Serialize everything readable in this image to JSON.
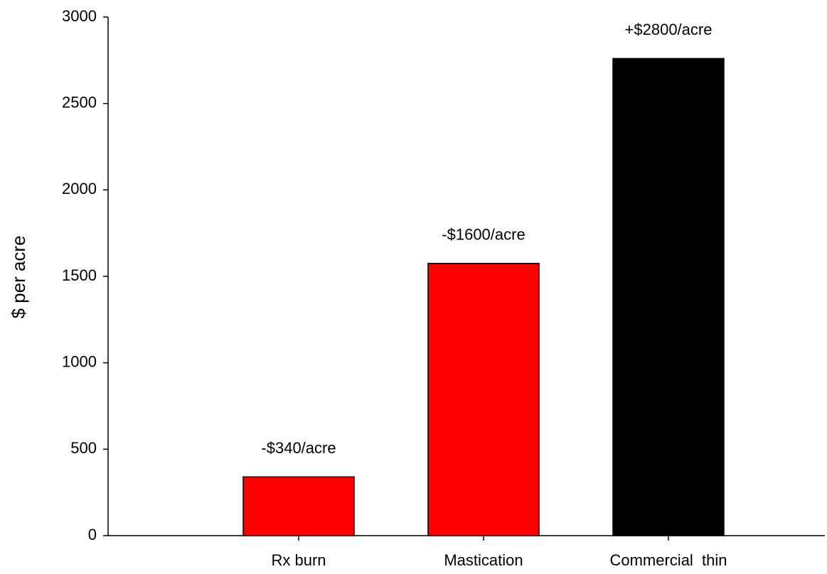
{
  "chart_data": {
    "type": "bar",
    "y_axis_label": "$ per acre",
    "categories": [
      "Rx burn",
      "Mastication",
      "Commercial  thin"
    ],
    "values": [
      340,
      1575,
      2760
    ],
    "colors": [
      "#ff0000",
      "#ff0000",
      "#000000"
    ],
    "annotations": [
      "-$340/acre",
      "-$1600/acre",
      "+$2800/acre"
    ],
    "ylim": [
      0,
      3000
    ],
    "yticks": [
      0,
      500,
      1000,
      1500,
      2000,
      2500,
      3000
    ],
    "grid": false
  }
}
